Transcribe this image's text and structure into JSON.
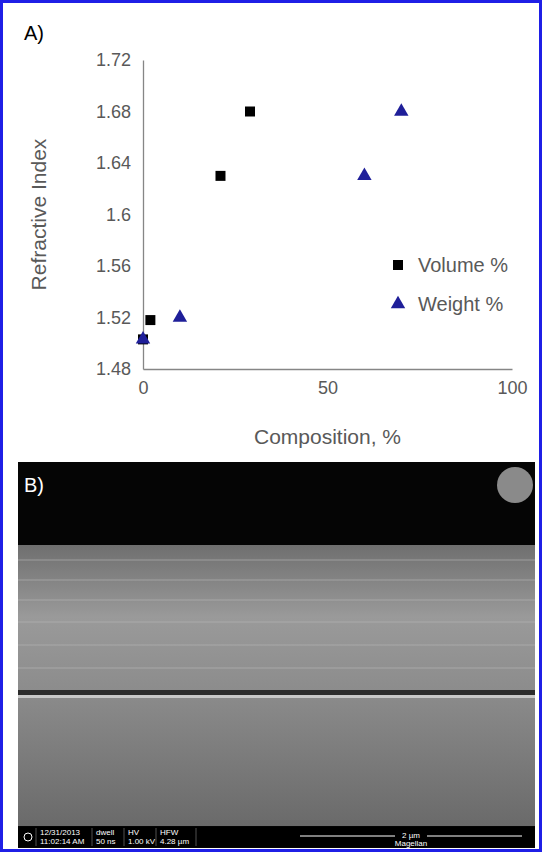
{
  "chart_data": {
    "type": "scatter",
    "panel_label": "A)",
    "x_label": "Composition, %",
    "y_label": "Refractive Index",
    "xlim": [
      0,
      100
    ],
    "xticks": [
      0,
      50,
      100
    ],
    "ylim": [
      1.48,
      1.72
    ],
    "yticks": [
      1.48,
      1.52,
      1.56,
      1.6,
      1.64,
      1.68,
      1.72
    ],
    "grid": false,
    "legend": "right",
    "series": [
      {
        "name": "Volume %",
        "color": "#000000",
        "marker": "square",
        "x": [
          0,
          2,
          21,
          29
        ],
        "values": [
          1.503,
          1.518,
          1.63,
          1.68
        ]
      },
      {
        "name": "Weight %",
        "color": "#1f1f99",
        "marker": "triangle",
        "x": [
          0,
          10,
          60,
          70
        ],
        "values": [
          1.503,
          1.52,
          1.63,
          1.68
        ]
      }
    ]
  },
  "micrograph": {
    "panel_label": "B)",
    "info_bar": {
      "date": "12/31/2013",
      "time": "11:02:14 AM",
      "dwell_label": "dwell",
      "dwell": "50 ns",
      "hv_label": "HV",
      "hv": "1.00 kV",
      "hfw_label": "HFW",
      "hfw": "4.28 µm",
      "scale_bar": "2 µm",
      "instrument": "Magellan"
    }
  }
}
